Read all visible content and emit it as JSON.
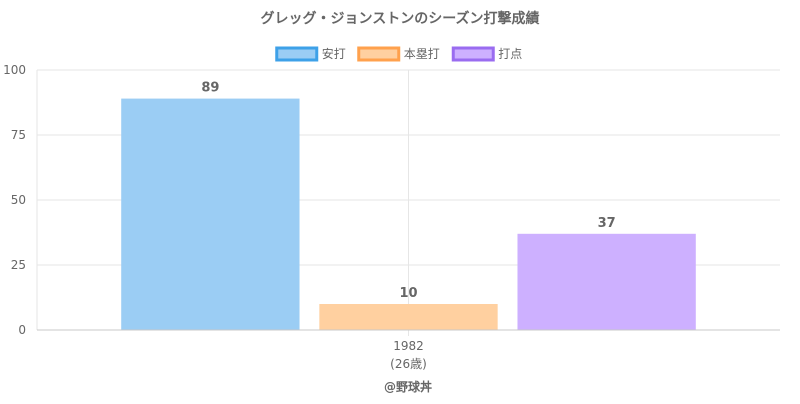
{
  "chart_data": {
    "type": "bar",
    "title": "グレッグ・ジョンストンのシーズン打撃成績",
    "categories": [
      "1982"
    ],
    "category_sublabels": [
      "(26歳)"
    ],
    "series": [
      {
        "name": "安打",
        "values": [
          89
        ],
        "color": "#9bcdf4",
        "border_color": "#3ea1e8"
      },
      {
        "name": "本塁打",
        "values": [
          10
        ],
        "color": "#ffd0a0",
        "border_color": "#ffa14d"
      },
      {
        "name": "打点",
        "values": [
          37
        ],
        "color": "#cdb0ff",
        "border_color": "#9a6cf0"
      }
    ],
    "ylim": [
      0,
      100
    ],
    "yticks": [
      0,
      25,
      50,
      75,
      100
    ],
    "grid": true,
    "legend_position": "top",
    "watermark": "@野球丼"
  }
}
